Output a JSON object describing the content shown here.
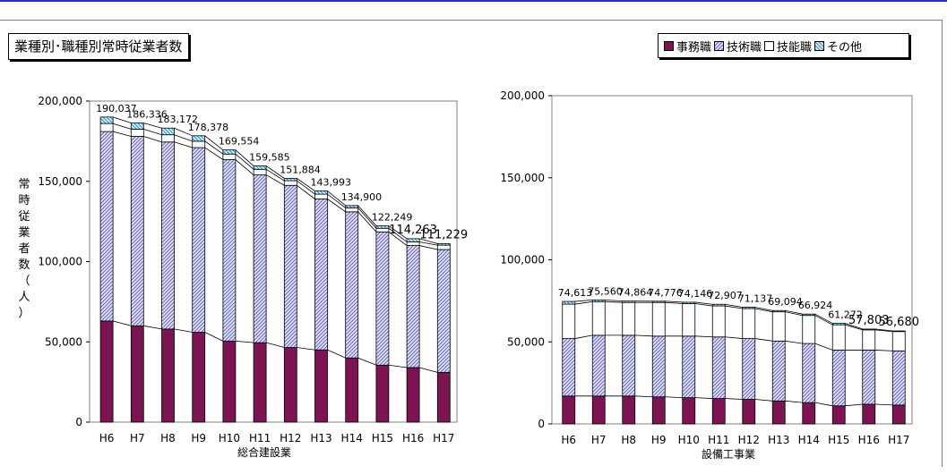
{
  "chart_title": "業種別･職種別常時従業者数",
  "ylabel_chars": [
    "常",
    "時",
    "従",
    "業",
    "者",
    "数",
    "（",
    "人",
    "）"
  ],
  "legend": [
    {
      "name": "事務職",
      "color": "#7b1450",
      "pattern": "solid"
    },
    {
      "name": "技術職",
      "color": "#9999ee",
      "pattern": "hatch"
    },
    {
      "name": "技能職",
      "color": "#ffffff",
      "pattern": "blank"
    },
    {
      "name": "その他",
      "color": "#55b0d0",
      "pattern": "hatch"
    }
  ],
  "chart_data": [
    {
      "type": "bar",
      "stacked": true,
      "xlabel": "総合建設業",
      "ylim": [
        0,
        200000
      ],
      "yticks": [
        "0",
        "50,000",
        "100,000",
        "150,000",
        "200,000"
      ],
      "categories": [
        "H6",
        "H7",
        "H8",
        "H9",
        "H10",
        "H11",
        "H12",
        "H13",
        "H14",
        "H15",
        "H16",
        "H17"
      ],
      "totals": [
        "190,037",
        "186,336",
        "183,172",
        "178,378",
        "169,554",
        "159,585",
        "151,884",
        "143,993",
        "134,900",
        "122,249",
        "114,263",
        "111,229"
      ],
      "series": [
        {
          "name": "事務職",
          "values": [
            63000,
            60000,
            58000,
            56000,
            50500,
            49500,
            46500,
            45000,
            40000,
            35500,
            34000,
            31000
          ]
        },
        {
          "name": "技術職",
          "values": [
            118000,
            118000,
            116500,
            115000,
            113000,
            104500,
            101000,
            94000,
            91000,
            83000,
            76000,
            76500
          ]
        },
        {
          "name": "技能職",
          "values": [
            5000,
            4500,
            4500,
            4000,
            3500,
            3500,
            2900,
            3000,
            2500,
            2250,
            2263,
            2729
          ]
        },
        {
          "name": "その他",
          "values": [
            4037,
            3836,
            4172,
            3378,
            2554,
            2085,
            1484,
            1993,
            1400,
            1499,
            2000,
            1000
          ]
        }
      ]
    },
    {
      "type": "bar",
      "stacked": true,
      "xlabel": "設備工事業",
      "ylim": [
        0,
        200000
      ],
      "yticks": [
        "0",
        "50,000",
        "100,000",
        "150,000",
        "200,000"
      ],
      "categories": [
        "H6",
        "H7",
        "H8",
        "H9",
        "H10",
        "H11",
        "H12",
        "H13",
        "H14",
        "H15",
        "H16",
        "H17"
      ],
      "totals": [
        "74,613",
        "75,560",
        "74,864",
        "74,776",
        "74,146",
        "72,907",
        "71,137",
        "69,094",
        "66,924",
        "61,272",
        "57,803",
        "56,680"
      ],
      "series": [
        {
          "name": "事務職",
          "values": [
            17000,
            17000,
            17000,
            16500,
            16000,
            15500,
            15000,
            14000,
            13000,
            11000,
            12000,
            11500
          ]
        },
        {
          "name": "技術職",
          "values": [
            35000,
            37000,
            37000,
            37000,
            37500,
            37500,
            37000,
            36500,
            36000,
            34000,
            33000,
            33000
          ]
        },
        {
          "name": "技能職",
          "values": [
            21000,
            20500,
            20000,
            20500,
            19800,
            18900,
            18300,
            17800,
            17100,
            15400,
            12300,
            11780
          ]
        },
        {
          "name": "その他",
          "values": [
            1613,
            1060,
            864,
            776,
            846,
            1007,
            837,
            794,
            824,
            872,
            503,
            400
          ]
        }
      ]
    }
  ]
}
